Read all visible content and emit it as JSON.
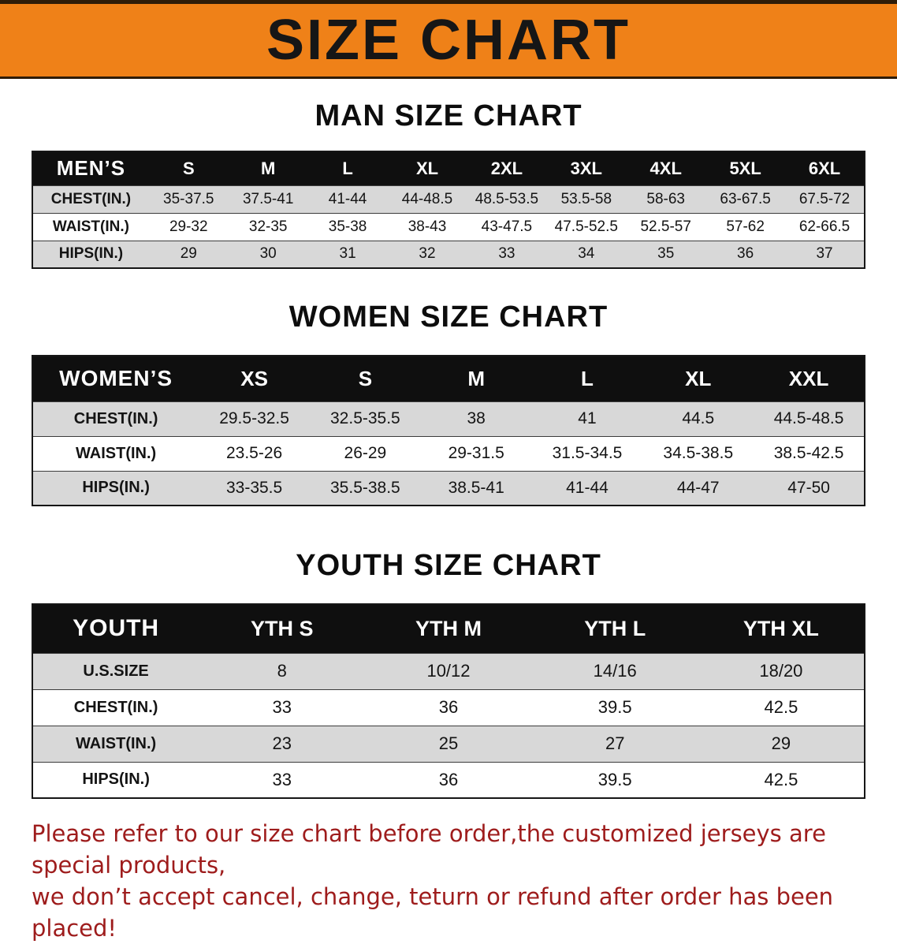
{
  "banner": {
    "title": "SIZE CHART",
    "bg_color": "#ef8118",
    "text_color": "#161616"
  },
  "colors": {
    "table_header_bg": "#0f0f0f",
    "table_header_text": "#ffffff",
    "row_alt_gray": "#d8d8d8",
    "footer_text": "#9e1c1c"
  },
  "sections": {
    "men": {
      "title": "MAN SIZE CHART",
      "table": {
        "label": "MEN’S",
        "columns": [
          "S",
          "M",
          "L",
          "XL",
          "2XL",
          "3XL",
          "4XL",
          "5XL",
          "6XL"
        ],
        "rows": [
          {
            "label": "CHEST(IN.)",
            "values": [
              "35-37.5",
              "37.5-41",
              "41-44",
              "44-48.5",
              "48.5-53.5",
              "53.5-58",
              "58-63",
              "63-67.5",
              "67.5-72"
            ]
          },
          {
            "label": "WAIST(IN.)",
            "values": [
              "29-32",
              "32-35",
              "35-38",
              "38-43",
              "43-47.5",
              "47.5-52.5",
              "52.5-57",
              "57-62",
              "62-66.5"
            ]
          },
          {
            "label": "HIPS(IN.)",
            "values": [
              "29",
              "30",
              "31",
              "32",
              "33",
              "34",
              "35",
              "36",
              "37"
            ]
          }
        ]
      }
    },
    "women": {
      "title": "WOMEN SIZE CHART",
      "table": {
        "label": "WOMEN’S",
        "columns": [
          "XS",
          "S",
          "M",
          "L",
          "XL",
          "XXL"
        ],
        "rows": [
          {
            "label": "CHEST(IN.)",
            "values": [
              "29.5-32.5",
              "32.5-35.5",
              "38",
              "41",
              "44.5",
              "44.5-48.5"
            ]
          },
          {
            "label": "WAIST(IN.)",
            "values": [
              "23.5-26",
              "26-29",
              "29-31.5",
              "31.5-34.5",
              "34.5-38.5",
              "38.5-42.5"
            ]
          },
          {
            "label": "HIPS(IN.)",
            "values": [
              "33-35.5",
              "35.5-38.5",
              "38.5-41",
              "41-44",
              "44-47",
              "47-50"
            ]
          }
        ]
      }
    },
    "youth": {
      "title": "YOUTH SIZE CHART",
      "table": {
        "label": "YOUTH",
        "columns": [
          "YTH S",
          "YTH M",
          "YTH L",
          "YTH XL"
        ],
        "rows": [
          {
            "label": "U.S.SIZE",
            "values": [
              "8",
              "10/12",
              "14/16",
              "18/20"
            ]
          },
          {
            "label": "CHEST(IN.)",
            "values": [
              "33",
              "36",
              "39.5",
              "42.5"
            ]
          },
          {
            "label": "WAIST(IN.)",
            "values": [
              "23",
              "25",
              "27",
              "29"
            ]
          },
          {
            "label": "HIPS(IN.)",
            "values": [
              "33",
              "36",
              "39.5",
              "42.5"
            ]
          }
        ]
      }
    }
  },
  "footer": {
    "lines": [
      "Please refer to our size chart before order,the customized jerseys are special products,",
      "we don’t accept cancel, change, teturn or refund after order has been placed!"
    ]
  }
}
